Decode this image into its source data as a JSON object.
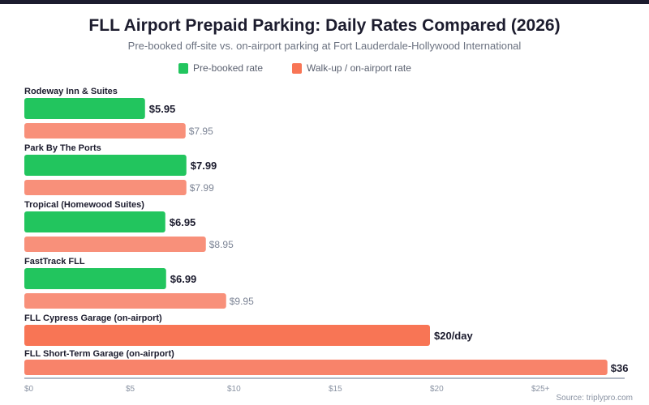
{
  "chart_data": {
    "type": "bar",
    "orientation": "horizontal",
    "title": "FLL Airport Prepaid Parking: Daily Rates Compared (2026)",
    "subtitle": "Pre-booked off-site vs. on-airport parking at Fort Lauderdale-Hollywood International",
    "legend": {
      "placement": "top-center",
      "entries": [
        {
          "name": "Pre-booked rate",
          "color": "#22c55e"
        },
        {
          "name": "Walk-up / on-airport rate",
          "color": "#f87555"
        }
      ]
    },
    "colors": {
      "prebooked": "#22c55e",
      "walkup_offsite": "#f8907a",
      "onairport_cypress": "#f87555",
      "onairport_shortterm": "#f8836a",
      "axis": "#b3bac6",
      "tick_text": "#8a93a3",
      "label_text": "#1c1c2e",
      "walkup_value_text": "#7d8596"
    },
    "xlim": [
      0,
      25
    ],
    "x_axis_cap_note": "Values above $25 drawn past the $25+ tick",
    "xticks": [
      "$0",
      "$5",
      "$10",
      "$15",
      "$20",
      "$25+"
    ],
    "xtick_values": [
      0,
      5,
      10,
      15,
      20,
      25
    ],
    "groups": [
      {
        "category": "Rodeway Inn & Suites",
        "prebooked": 5.95,
        "prebooked_label": "$5.95",
        "walkup": 7.95,
        "walkup_label": "$7.95"
      },
      {
        "category": "Park By The Ports",
        "prebooked": 7.99,
        "prebooked_label": "$7.99",
        "walkup": 7.99,
        "walkup_label": "$7.99"
      },
      {
        "category": "Tropical (Homewood Suites)",
        "prebooked": 6.95,
        "prebooked_label": "$6.95",
        "walkup": 8.95,
        "walkup_label": "$8.95"
      },
      {
        "category": "FastTrack FLL",
        "prebooked": 6.99,
        "prebooked_label": "$6.99",
        "walkup": 9.95,
        "walkup_label": "$9.95"
      }
    ],
    "on_airport": [
      {
        "category": "FLL Cypress Garage (on-airport)",
        "value": 20,
        "label": "$20/day",
        "style": "cypress"
      },
      {
        "category": "FLL Short-Term Garage (on-airport)",
        "value": 36,
        "display_value": 28.75,
        "label": "$36",
        "style": "shortterm"
      }
    ],
    "grid": false
  },
  "source": "Source: triplypro.com"
}
